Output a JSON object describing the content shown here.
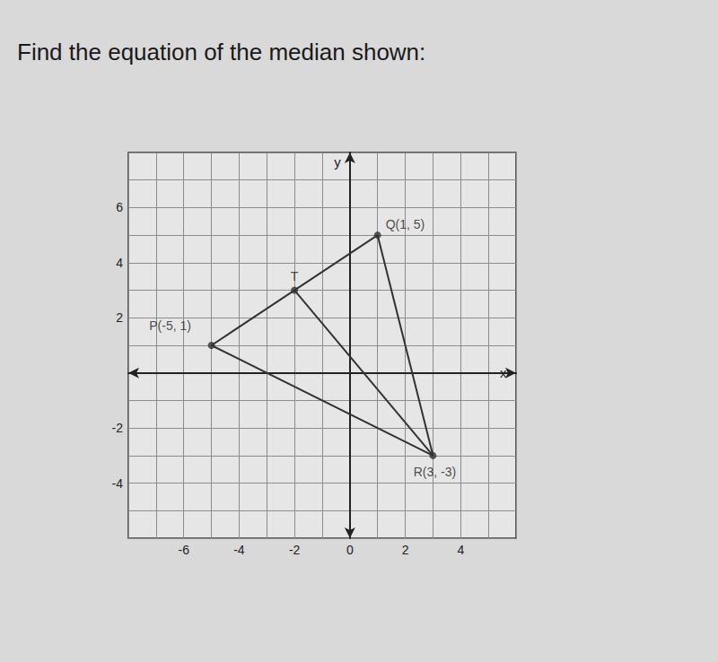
{
  "chart_data": {
    "type": "line",
    "title": "Find the equation of the median shown:",
    "x_label": "x",
    "y_label": "y",
    "xlim": [
      -8,
      6
    ],
    "ylim": [
      -6,
      8
    ],
    "xticks": [
      -6,
      -4,
      -2,
      0,
      2,
      4
    ],
    "yticks": [
      -4,
      -2,
      2,
      4,
      6
    ],
    "grid": true,
    "color": "#333333",
    "marker": "circle",
    "points": [
      {
        "x": -5,
        "y": 1,
        "label": "P(-5, 1)"
      },
      {
        "x": 1,
        "y": 5,
        "label": "Q(1, 5)"
      },
      {
        "x": -2,
        "y": 3,
        "label": "T"
      },
      {
        "x": 3,
        "y": -3,
        "label": "R(3, -3)"
      }
    ],
    "lines": [
      {
        "x": [
          -5,
          1,
          3,
          -5
        ],
        "y": [
          1,
          5,
          -3,
          1
        ]
      },
      {
        "x": [
          -2,
          3
        ],
        "y": [
          3,
          -3
        ]
      }
    ]
  }
}
